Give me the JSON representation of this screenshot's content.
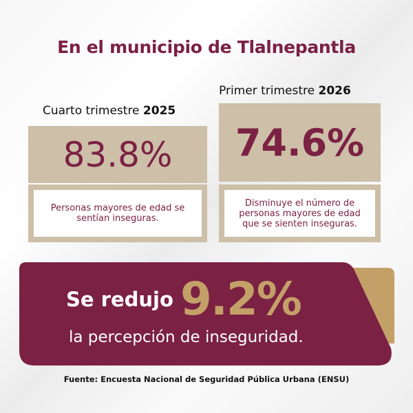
{
  "title": {
    "prefix": "En el municipio de",
    "place": "Tlalnepantla"
  },
  "left": {
    "period": "Cuarto trimestre",
    "year": "2025",
    "value": "83.8%",
    "description": "Personas mayores de edad se sentían inseguras."
  },
  "right": {
    "period": "Primer trimestre",
    "year": "2026",
    "value": "74.6%",
    "description": "Disminuye el número de personas mayores de edad que se sienten inseguras."
  },
  "banner": {
    "lead": "Se redujo",
    "value": "9.2%",
    "tail": "la percepción de inseguridad."
  },
  "footer": "Fuente: Encuesta Nacional de Seguridad Pública Urbana (ENSU)",
  "colors": {
    "maroon": "#7b2143",
    "tan": "#cdbfa8",
    "gold": "#c4a069"
  }
}
